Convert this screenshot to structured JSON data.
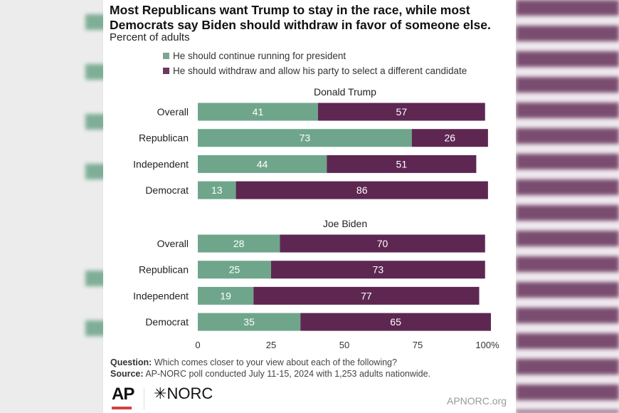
{
  "title": "Most Republicans want Trump to stay in the race, while most Democrats say Biden should withdraw in favor of someone else.",
  "subtitle": "Percent of adults",
  "colors": {
    "continue": "#6fa68b",
    "withdraw": "#5e2752"
  },
  "chart_data": {
    "type": "bar",
    "orientation": "horizontal",
    "stacked": true,
    "legend": [
      "He should continue running for president",
      "He should withdraw and allow his party to select a different candidate"
    ],
    "legend_placement": "top",
    "xlim": [
      0,
      100
    ],
    "xticks": [
      "0",
      "25",
      "50",
      "75",
      "100%"
    ],
    "panels": [
      {
        "title": "Donald Trump",
        "categories": [
          "Overall",
          "Republican",
          "Independent",
          "Democrat"
        ],
        "series": [
          {
            "name": "He should continue running for president",
            "values": [
              41,
              73,
              44,
              13
            ]
          },
          {
            "name": "He should withdraw and allow his party to select a different candidate",
            "values": [
              57,
              26,
              51,
              86
            ]
          }
        ]
      },
      {
        "title": "Joe Biden",
        "categories": [
          "Overall",
          "Republican",
          "Independent",
          "Democrat"
        ],
        "series": [
          {
            "name": "He should continue running for president",
            "values": [
              28,
              25,
              19,
              35
            ]
          },
          {
            "name": "He should withdraw and allow his party to select a different candidate",
            "values": [
              70,
              73,
              77,
              65
            ]
          }
        ]
      }
    ]
  },
  "footer": {
    "question_label": "Question:",
    "question": " Which comes closer to your view about each of the following?",
    "source_label": "Source:",
    "source": " AP-NORC poll conducted July 11-15, 2024 with 1,253 adults nationwide.",
    "logo_ap": "AP",
    "logo_norc": "NORC",
    "url": "APNORC.org"
  }
}
